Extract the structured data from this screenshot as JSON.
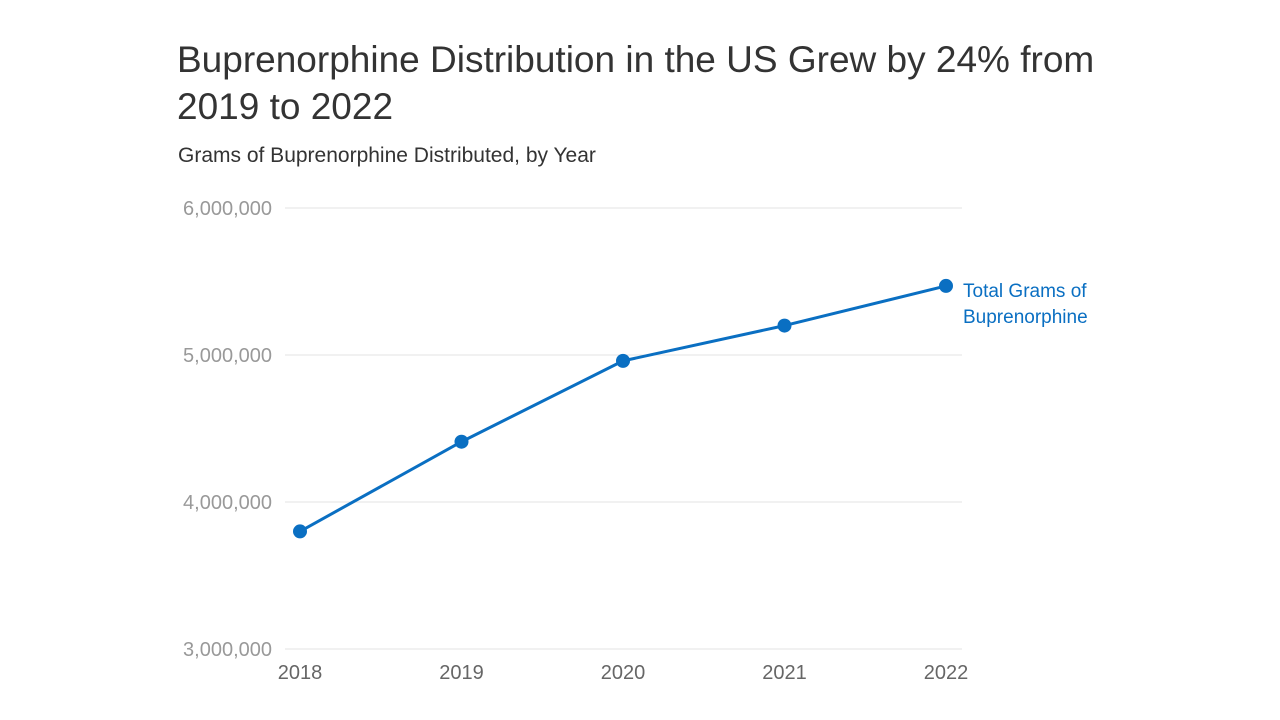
{
  "header": {
    "title": "Buprenorphine Distribution in the US Grew by 24% from 2019 to 2022",
    "subtitle": "Grams of Buprenorphine Distributed, by Year"
  },
  "colors": {
    "series": "#0a6fc2",
    "grid": "#e3e3e3",
    "ytick": "#999999",
    "xtick": "#666666"
  },
  "chart_data": {
    "type": "line",
    "title": "Buprenorphine Distribution in the US Grew by 24% from 2019 to 2022",
    "subtitle": "Grams of Buprenorphine Distributed, by Year",
    "xlabel": "",
    "ylabel": "",
    "categories": [
      "2018",
      "2019",
      "2020",
      "2021",
      "2022"
    ],
    "ylim": [
      3000000,
      6000000
    ],
    "yticks": [
      3000000,
      4000000,
      5000000,
      6000000
    ],
    "ytick_labels": [
      "3,000,000",
      "4,000,000",
      "5,000,000",
      "6,000,000"
    ],
    "grid": true,
    "legend": "direct label at end of line",
    "series": [
      {
        "name": "Total Grams of Buprenorphine",
        "label_lines": [
          "Total Grams of",
          "Buprenorphine"
        ],
        "values": [
          3800000,
          4410000,
          4960000,
          5200000,
          5470000
        ]
      }
    ]
  }
}
